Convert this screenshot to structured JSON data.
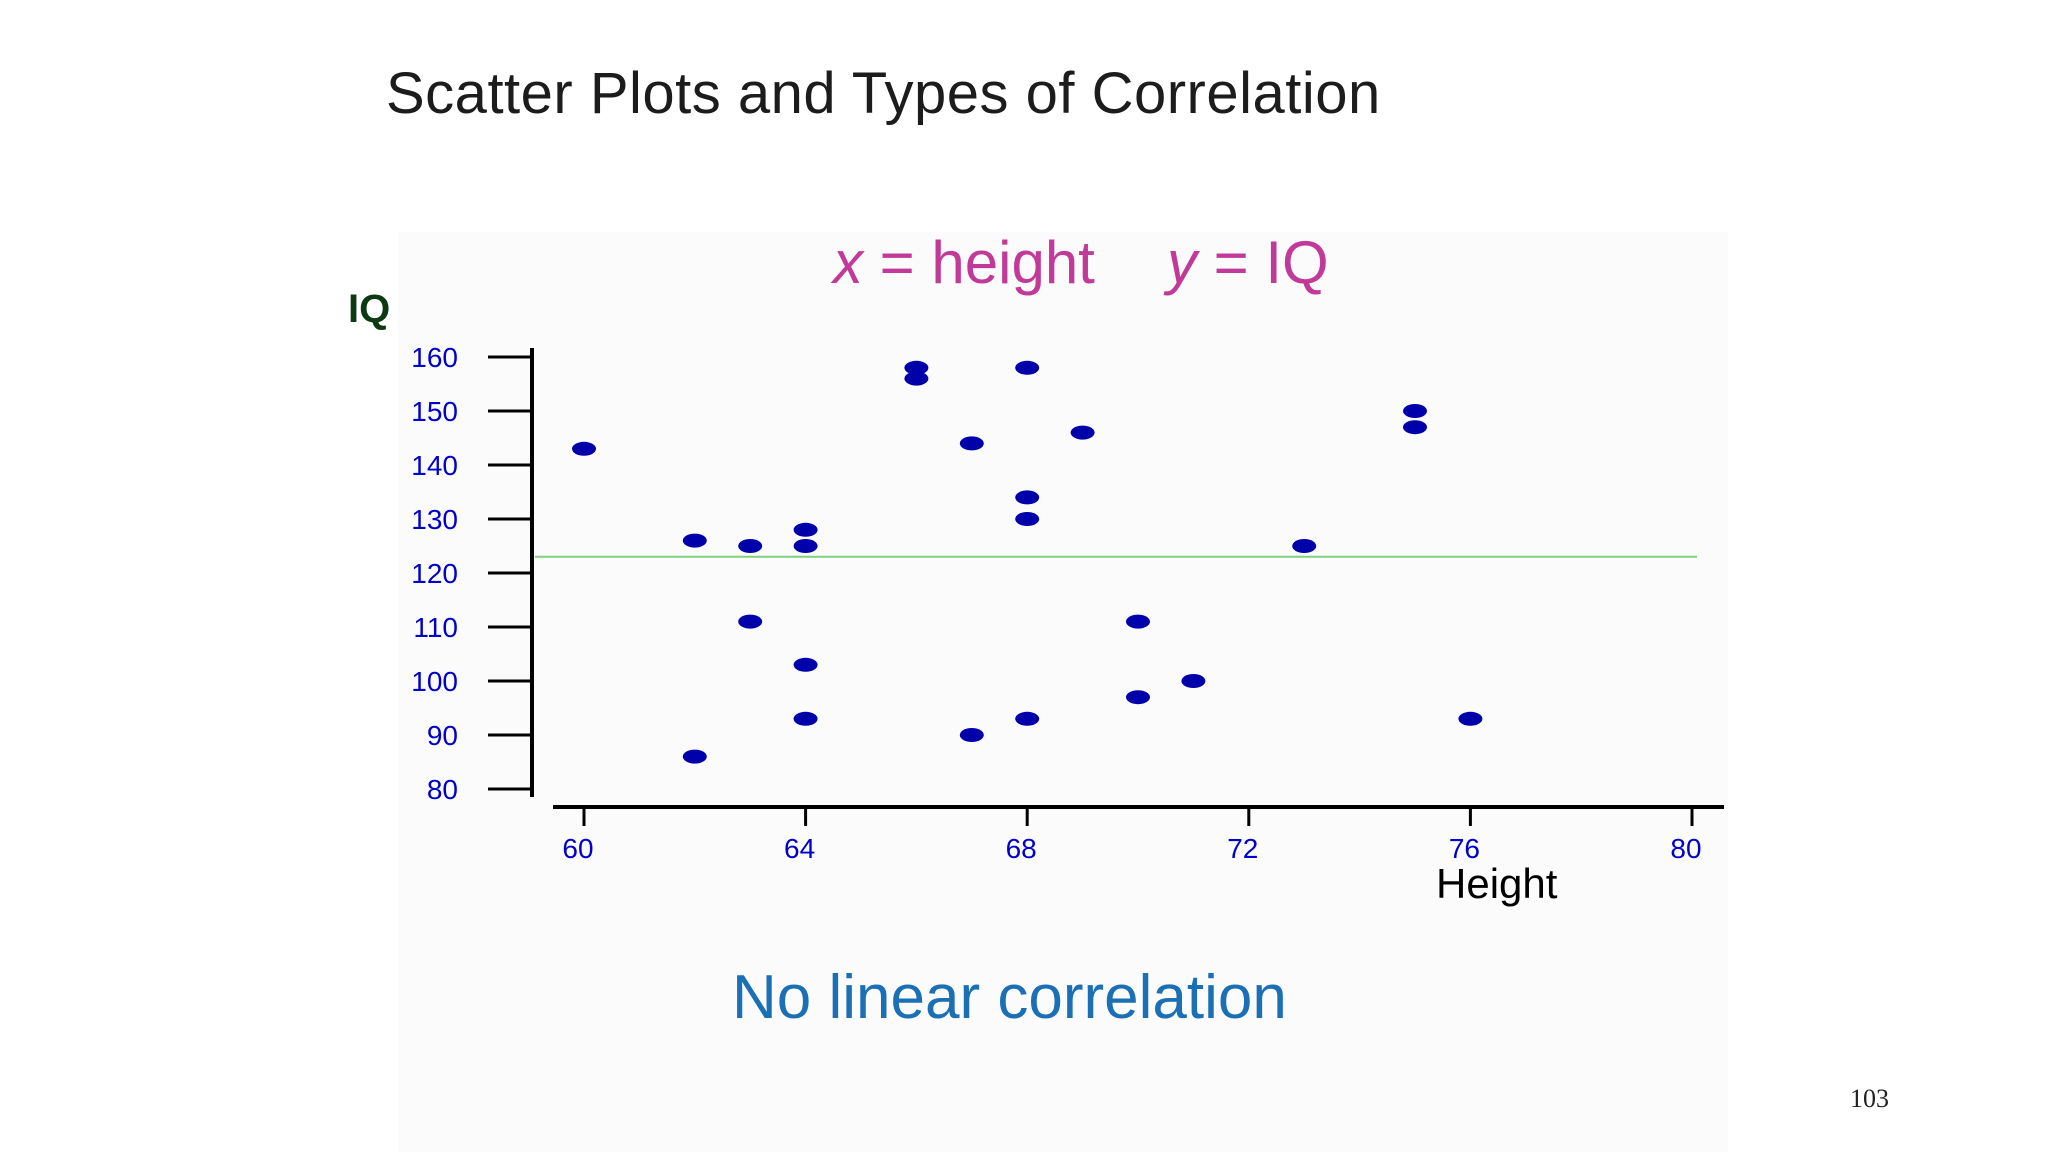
{
  "slide": {
    "title": "Scatter Plots and Types of Correlation",
    "equation_x": "x = height",
    "equation_y": "y = IQ",
    "conclusion": "No linear correlation",
    "page_number": "103"
  },
  "colors": {
    "points": "#0000aa",
    "tick_labels": "#0000cc",
    "ylabel": "#0d3a12",
    "equation": "#c13a9a",
    "conclusion": "#1b6fb5",
    "reference_line": "#7fd07f"
  },
  "chart_data": {
    "type": "scatter",
    "title": "",
    "xlabel": "Height",
    "ylabel": "IQ",
    "xlim": [
      60,
      80
    ],
    "ylim": [
      80,
      160
    ],
    "x_ticks": [
      "60",
      "64",
      "68",
      "72",
      "76",
      "80"
    ],
    "y_ticks": [
      "80",
      "90",
      "100",
      "110",
      "120",
      "130",
      "140",
      "150",
      "160"
    ],
    "grid": false,
    "reference_line_y": 123,
    "series": [
      {
        "points": [
          [
            60,
            143
          ],
          [
            62,
            126
          ],
          [
            62,
            86
          ],
          [
            63,
            125
          ],
          [
            63,
            111
          ],
          [
            64,
            128
          ],
          [
            64,
            125
          ],
          [
            64,
            103
          ],
          [
            64,
            93
          ],
          [
            66,
            158
          ],
          [
            66,
            156
          ],
          [
            67,
            144
          ],
          [
            67,
            90
          ],
          [
            68,
            158
          ],
          [
            68,
            134
          ],
          [
            68,
            130
          ],
          [
            68,
            93
          ],
          [
            69,
            146
          ],
          [
            70,
            111
          ],
          [
            70,
            97
          ],
          [
            71,
            100
          ],
          [
            73,
            125
          ],
          [
            75,
            150
          ],
          [
            75,
            147
          ],
          [
            76,
            93
          ]
        ]
      }
    ]
  }
}
